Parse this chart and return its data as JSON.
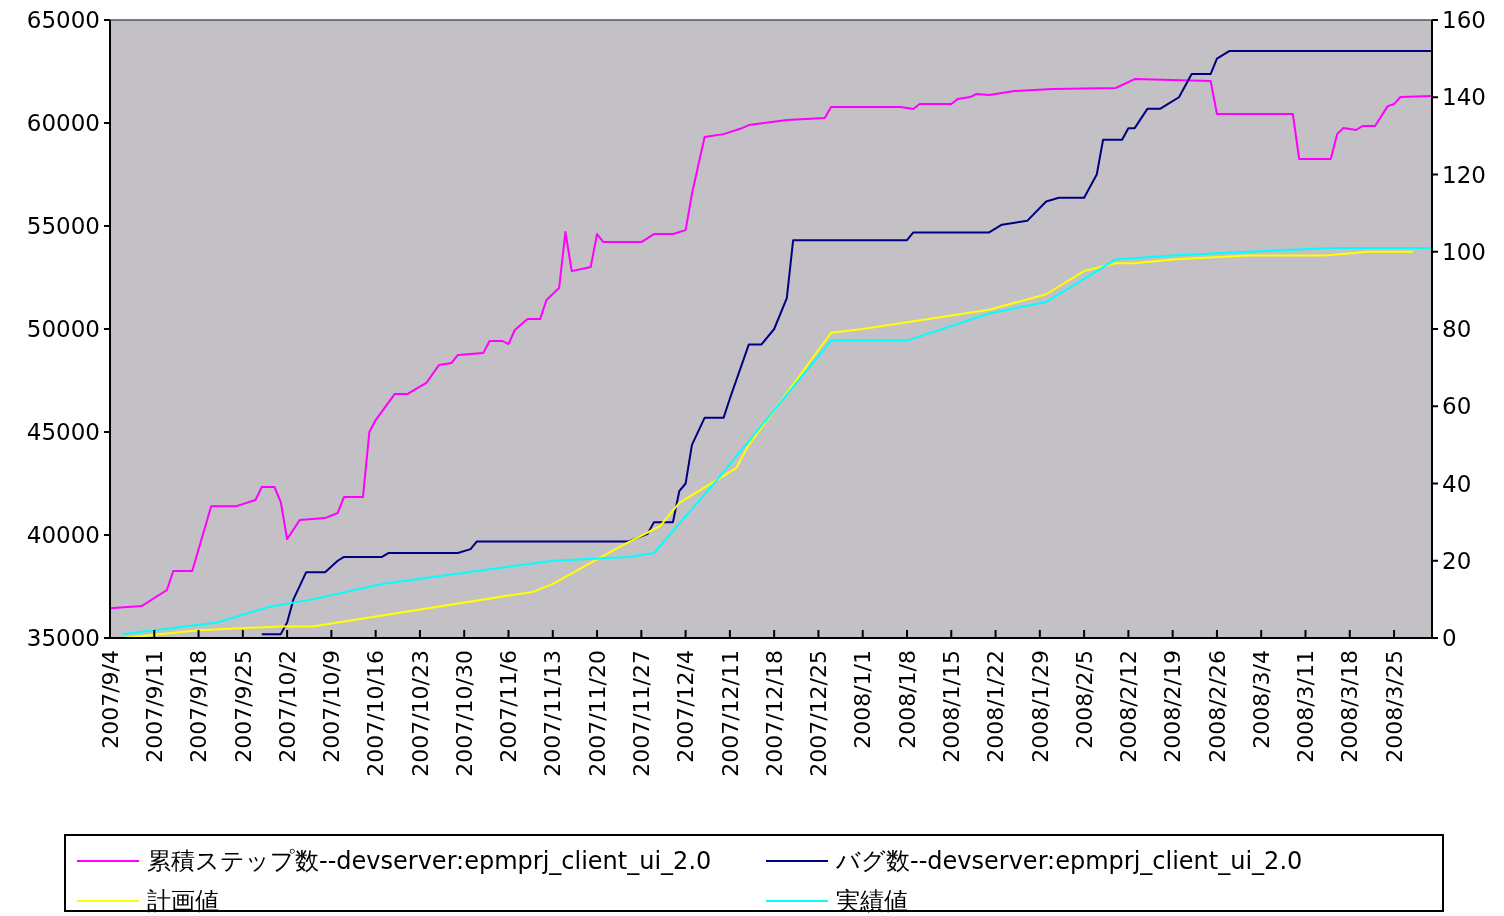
{
  "chart_data": {
    "type": "line",
    "xlim": [
      "2007-09-04",
      "2008-03-31"
    ],
    "xticks": [
      {
        "value": "2007-09-04",
        "label": "2007/9/4"
      },
      {
        "value": "2007-09-11",
        "label": "2007/9/11"
      },
      {
        "value": "2007-09-18",
        "label": "2007/9/18"
      },
      {
        "value": "2007-09-25",
        "label": "2007/9/25"
      },
      {
        "value": "2007-10-02",
        "label": "2007/10/2"
      },
      {
        "value": "2007-10-09",
        "label": "2007/10/9"
      },
      {
        "value": "2007-10-16",
        "label": "2007/10/16"
      },
      {
        "value": "2007-10-23",
        "label": "2007/10/23"
      },
      {
        "value": "2007-10-30",
        "label": "2007/10/30"
      },
      {
        "value": "2007-11-06",
        "label": "2007/11/6"
      },
      {
        "value": "2007-11-13",
        "label": "2007/11/13"
      },
      {
        "value": "2007-11-20",
        "label": "2007/11/20"
      },
      {
        "value": "2007-11-27",
        "label": "2007/11/27"
      },
      {
        "value": "2007-12-04",
        "label": "2007/12/4"
      },
      {
        "value": "2007-12-11",
        "label": "2007/12/11"
      },
      {
        "value": "2007-12-18",
        "label": "2007/12/18"
      },
      {
        "value": "2007-12-25",
        "label": "2007/12/25"
      },
      {
        "value": "2008-01-01",
        "label": "2008/1/1"
      },
      {
        "value": "2008-01-08",
        "label": "2008/1/8"
      },
      {
        "value": "2008-01-15",
        "label": "2008/1/15"
      },
      {
        "value": "2008-01-22",
        "label": "2008/1/22"
      },
      {
        "value": "2008-01-29",
        "label": "2008/1/29"
      },
      {
        "value": "2008-02-05",
        "label": "2008/2/5"
      },
      {
        "value": "2008-02-12",
        "label": "2008/2/12"
      },
      {
        "value": "2008-02-19",
        "label": "2008/2/19"
      },
      {
        "value": "2008-02-26",
        "label": "2008/2/26"
      },
      {
        "value": "2008-03-04",
        "label": "2008/3/4"
      },
      {
        "value": "2008-03-11",
        "label": "2008/3/11"
      },
      {
        "value": "2008-03-18",
        "label": "2008/3/18"
      },
      {
        "value": "2008-03-25",
        "label": "2008/3/25"
      }
    ],
    "ylim": [
      35000,
      65000
    ],
    "yticks": [
      35000,
      40000,
      45000,
      50000,
      55000,
      60000,
      65000
    ],
    "y2lim": [
      0,
      160
    ],
    "y2ticks": [
      0,
      20,
      40,
      60,
      80,
      100,
      120,
      140,
      160
    ],
    "legend": "bottom",
    "grid": false,
    "marker": "none",
    "series": [
      {
        "name": "累積ステップ数--devserver:epmprj_client_ui_2.0",
        "color": "#ff00ff",
        "x": [
          "2007-09-04",
          "2007-09-09",
          "2007-09-13",
          "2007-09-14",
          "2007-09-17",
          "2007-09-20",
          "2007-09-24",
          "2007-09-27",
          "2007-09-28",
          "2007-09-30",
          "2007-10-01",
          "2007-10-02",
          "2007-10-04",
          "2007-10-08",
          "2007-10-10",
          "2007-10-11",
          "2007-10-14",
          "2007-10-15",
          "2007-10-16",
          "2007-10-19",
          "2007-10-21",
          "2007-10-24",
          "2007-10-26",
          "2007-10-28",
          "2007-10-29",
          "2007-11-02",
          "2007-11-03",
          "2007-11-05",
          "2007-11-06",
          "2007-11-07",
          "2007-11-09",
          "2007-11-11",
          "2007-11-12",
          "2007-11-14",
          "2007-11-15",
          "2007-11-16",
          "2007-11-19",
          "2007-11-20",
          "2007-11-21",
          "2007-11-27",
          "2007-11-29",
          "2007-12-02",
          "2007-12-04",
          "2007-12-05",
          "2007-12-07",
          "2007-12-10",
          "2007-12-13",
          "2007-12-14",
          "2007-12-20",
          "2007-12-26",
          "2007-12-27",
          "2008-01-07",
          "2008-01-09",
          "2008-01-10",
          "2008-01-15",
          "2008-01-16",
          "2008-01-18",
          "2008-01-19",
          "2008-01-21",
          "2008-01-25",
          "2008-01-31",
          "2008-02-10",
          "2008-02-13",
          "2008-02-25",
          "2008-02-26",
          "2008-03-09",
          "2008-03-10",
          "2008-03-15",
          "2008-03-16",
          "2008-03-17",
          "2008-03-19",
          "2008-03-20",
          "2008-03-22",
          "2008-03-24",
          "2008-03-25",
          "2008-03-26",
          "2008-03-31"
        ],
        "values": [
          36450,
          36550,
          37330,
          38250,
          38250,
          41400,
          41400,
          41700,
          42330,
          42330,
          41600,
          39800,
          40730,
          40820,
          41070,
          41850,
          41850,
          45000,
          45580,
          46840,
          46840,
          47380,
          48250,
          48350,
          48740,
          48830,
          49420,
          49420,
          49270,
          49950,
          50480,
          50480,
          51410,
          51990,
          54710,
          52810,
          53010,
          54610,
          54220,
          54220,
          54610,
          54610,
          54800,
          56550,
          59320,
          59460,
          59760,
          59900,
          60140,
          60240,
          60780,
          60780,
          60680,
          60920,
          60920,
          61160,
          61260,
          61410,
          61360,
          61550,
          61650,
          61700,
          62130,
          62040,
          60440,
          60440,
          58250,
          58250,
          59460,
          59760,
          59660,
          59850,
          59850,
          60820,
          60920,
          61260,
          61310
        ]
      },
      {
        "name": "バグ数--devserver:epmprj_client_ui_2.0",
        "color": "#000080",
        "axis": "y2",
        "x": [
          "2007-09-28",
          "2007-10-01",
          "2007-10-02",
          "2007-10-03",
          "2007-10-05",
          "2007-10-08",
          "2007-10-10",
          "2007-10-11",
          "2007-10-17",
          "2007-10-18",
          "2007-10-29",
          "2007-10-31",
          "2007-11-01",
          "2007-11-25",
          "2007-11-28",
          "2007-11-29",
          "2007-12-02",
          "2007-12-03",
          "2007-12-04",
          "2007-12-05",
          "2007-12-07",
          "2007-12-10",
          "2007-12-11",
          "2007-12-14",
          "2007-12-16",
          "2007-12-18",
          "2007-12-20",
          "2007-12-21",
          "2007-12-24",
          "2007-12-26",
          "2008-01-08",
          "2008-01-09",
          "2008-01-21",
          "2008-01-23",
          "2008-01-27",
          "2008-01-30",
          "2008-02-01",
          "2008-02-05",
          "2008-02-07",
          "2008-02-08",
          "2008-02-11",
          "2008-02-12",
          "2008-02-13",
          "2008-02-15",
          "2008-02-17",
          "2008-02-19",
          "2008-02-20",
          "2008-02-22",
          "2008-02-25",
          "2008-02-26",
          "2008-02-28",
          "2008-03-31"
        ],
        "values": [
          1,
          1,
          4,
          10,
          17,
          17,
          20,
          21,
          21,
          22,
          22,
          23,
          25,
          25,
          27,
          30,
          30,
          38,
          40,
          50,
          57,
          57,
          62,
          76,
          76,
          80,
          88,
          103,
          103,
          103,
          103,
          105,
          105,
          107,
          108,
          113,
          114,
          114,
          120,
          129,
          129,
          132,
          132,
          137,
          137,
          139,
          140,
          146,
          146,
          150,
          152,
          152
        ]
      },
      {
        "name": "計画値",
        "color": "#ffff00",
        "axis": "y2",
        "x": [
          "2007-09-06",
          "2007-09-18",
          "2007-10-01",
          "2007-10-06",
          "2007-11-10",
          "2007-11-13",
          "2007-11-24",
          "2007-11-30",
          "2007-12-03",
          "2007-12-12",
          "2007-12-14",
          "2007-12-27",
          "2008-01-01",
          "2008-01-21",
          "2008-01-30",
          "2008-02-01",
          "2008-02-05",
          "2008-02-10",
          "2008-02-13",
          "2008-02-19",
          "2008-03-02",
          "2008-03-14",
          "2008-03-21",
          "2008-03-28"
        ],
        "values": [
          0,
          2,
          3,
          3,
          12,
          14,
          24,
          29,
          35,
          44,
          50,
          79,
          80,
          85,
          89,
          91,
          95,
          97,
          97,
          98,
          99,
          99,
          100,
          100
        ]
      },
      {
        "name": "実績値",
        "color": "#00ffff",
        "axis": "y2",
        "x": [
          "2007-09-06",
          "2007-09-21",
          "2007-09-29",
          "2007-10-06",
          "2007-10-17",
          "2007-11-13",
          "2007-11-25",
          "2007-11-29",
          "2007-12-09",
          "2007-12-17",
          "2007-12-27",
          "2008-01-08",
          "2008-01-21",
          "2008-01-30",
          "2008-02-05",
          "2008-02-10",
          "2008-02-19",
          "2008-03-02",
          "2008-03-15",
          "2008-03-31"
        ],
        "values": [
          1,
          4,
          8,
          10,
          14,
          20,
          21,
          22,
          41,
          57,
          77,
          77,
          84,
          87,
          93,
          98,
          99,
          100,
          101,
          101
        ]
      }
    ]
  }
}
